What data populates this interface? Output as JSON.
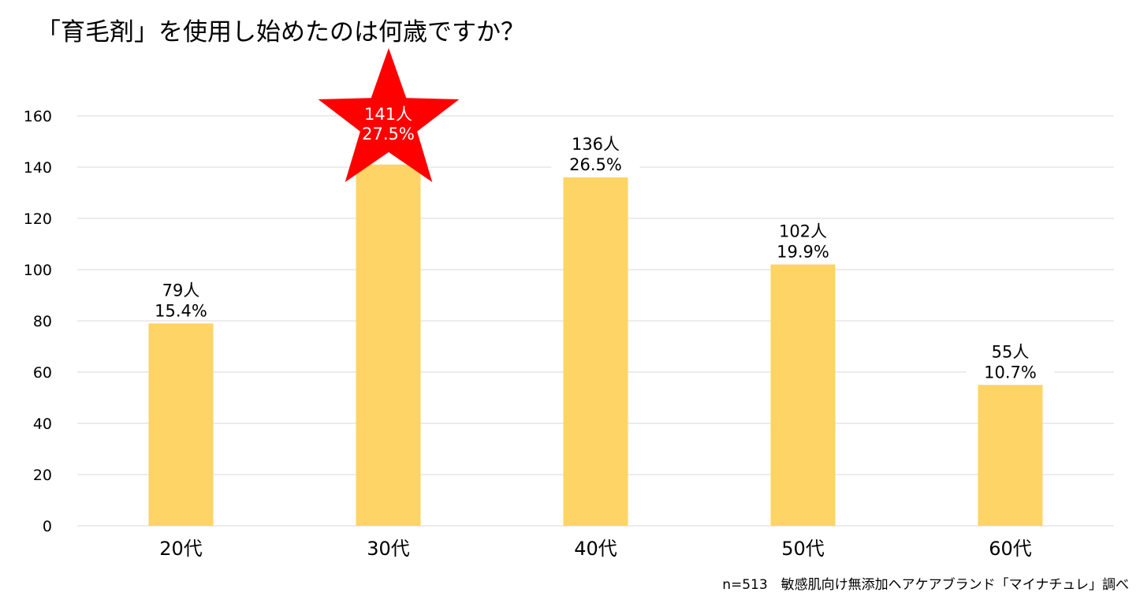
{
  "chart_data": {
    "type": "bar",
    "title": "「育毛剤」を使用し始めたのは何歳ですか？",
    "categories": [
      "20代",
      "30代",
      "40代",
      "50代",
      "60代"
    ],
    "values": [
      79,
      141,
      136,
      102,
      55
    ],
    "value_labels": [
      "79人",
      "141人",
      "136人",
      "102人",
      "55人"
    ],
    "percent_labels": [
      "15.4%",
      "27.5%",
      "26.5%",
      "19.9%",
      "10.7%"
    ],
    "highlight_index": 1,
    "ylim": [
      0,
      160
    ],
    "yticks": [
      "0",
      "20",
      "40",
      "60",
      "80",
      "100",
      "120",
      "140",
      "160"
    ],
    "xlabel": "",
    "ylabel": "",
    "grid": true,
    "legend": "none",
    "bar_color": "#FDD465",
    "highlight_color": "#FF0000",
    "grid_color": "#D9D9D9"
  },
  "source_note": "n=513　敏感肌向け無添加ヘアケアブランド「マイナチュレ」調べ"
}
